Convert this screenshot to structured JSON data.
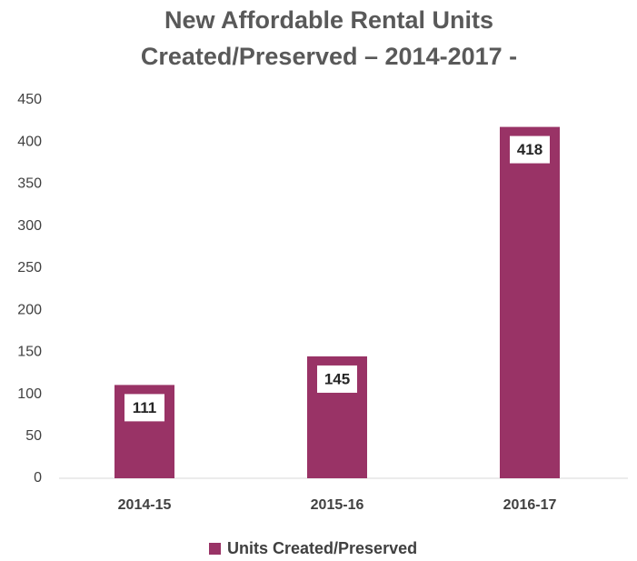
{
  "chart_data": {
    "type": "bar",
    "title": [
      "New Affordable Rental Units",
      "Created/Preserved – 2014-2017 -"
    ],
    "categories": [
      "2014-15",
      "2015-16",
      "2016-17"
    ],
    "series": [
      {
        "name": "Units Created/Preserved",
        "color": "#993366",
        "values": [
          111,
          145,
          418
        ]
      }
    ],
    "ylim": [
      0,
      450
    ],
    "yticks": [
      0,
      50,
      100,
      150,
      200,
      250,
      300,
      350,
      400,
      450
    ],
    "grid": false,
    "legend": "bottom"
  }
}
